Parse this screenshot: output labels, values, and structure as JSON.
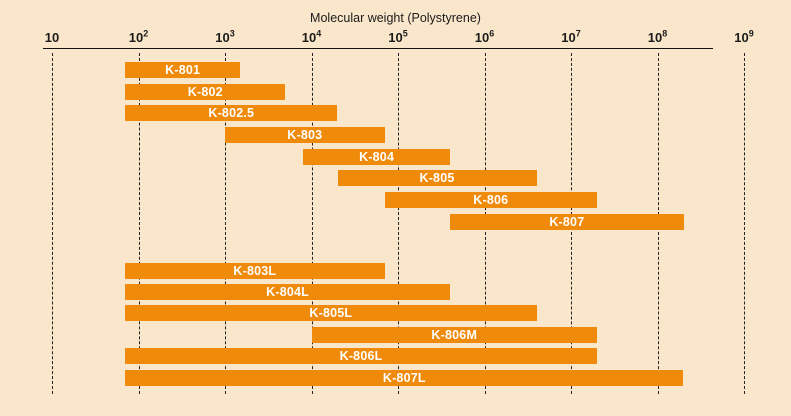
{
  "chart_data": {
    "type": "bar",
    "subtype": "horizontal-log-range",
    "title": "Molecular weight (Polystyrene)",
    "x_axis": {
      "scale": "log10",
      "min": 10,
      "max": 1000000000,
      "tick_labels": [
        "10",
        "10^2",
        "10^3",
        "10^4",
        "10^5",
        "10^6",
        "10^7",
        "10^8",
        "10^9"
      ],
      "tick_exponents": [
        1,
        2,
        3,
        4,
        5,
        6,
        7,
        8,
        9
      ],
      "gridlines": "dashed-vertical"
    },
    "series": [
      {
        "label": "K-801",
        "min": 70,
        "max": 1500,
        "group": 1
      },
      {
        "label": "K-802",
        "min": 70,
        "max": 5000,
        "group": 1
      },
      {
        "label": "K-802.5",
        "min": 70,
        "max": 20000,
        "group": 1
      },
      {
        "label": "K-803",
        "min": 1000,
        "max": 70000,
        "group": 1
      },
      {
        "label": "K-804",
        "min": 8000,
        "max": 400000,
        "group": 1
      },
      {
        "label": "K-805",
        "min": 20000,
        "max": 4000000,
        "group": 1
      },
      {
        "label": "K-806",
        "min": 70000,
        "max": 20000000,
        "group": 1
      },
      {
        "label": "K-807",
        "min": 400000,
        "max": 200000000,
        "group": 1
      },
      {
        "label": "K-803L",
        "min": 70,
        "max": 70000,
        "group": 2
      },
      {
        "label": "K-804L",
        "min": 70,
        "max": 400000,
        "group": 2
      },
      {
        "label": "K-805L",
        "min": 70,
        "max": 4000000,
        "group": 2
      },
      {
        "label": "K-806M",
        "min": 10000,
        "max": 20000000,
        "group": 2
      },
      {
        "label": "K-806L",
        "min": 70,
        "max": 20000000,
        "group": 2
      },
      {
        "label": "K-807L",
        "min": 70,
        "max": 200000000,
        "group": 2
      }
    ],
    "colors": {
      "bar": "#F08A0A",
      "bar_label": "#FFFFFF",
      "background": "#FAE7CB",
      "axis_text": "#1B1B1B",
      "gridline": "#222222"
    }
  }
}
